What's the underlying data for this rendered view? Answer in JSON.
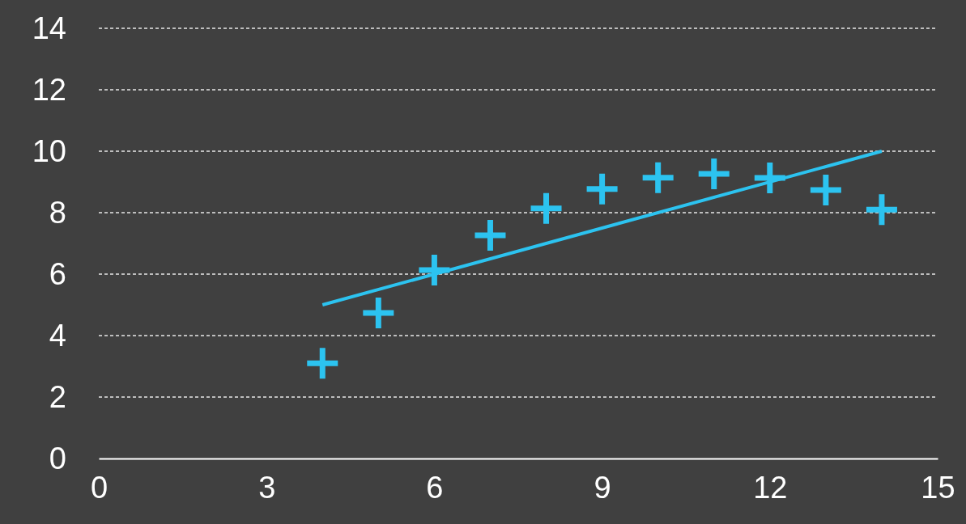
{
  "chart_data": {
    "type": "scatter",
    "series": [
      {
        "color": "#2cc3f0",
        "marker": "cross",
        "x": [
          4,
          5,
          6,
          7,
          8,
          9,
          10,
          11,
          12,
          13,
          14
        ],
        "values": [
          3.1,
          4.74,
          6.13,
          7.26,
          8.14,
          8.77,
          9.14,
          9.26,
          9.13,
          8.74,
          8.1
        ]
      },
      {
        "type": "line",
        "color": "#2cc3f0",
        "marker": "none",
        "line_style": "solid",
        "x": [
          4,
          14
        ],
        "values": [
          5,
          10
        ]
      }
    ],
    "xlim": [
      0,
      15
    ],
    "xticks": [
      0,
      3,
      6,
      9,
      12,
      15
    ],
    "ylim": [
      0,
      14
    ],
    "yticks": [
      0,
      2,
      4,
      6,
      8,
      10,
      12,
      14
    ],
    "grid": "y"
  }
}
